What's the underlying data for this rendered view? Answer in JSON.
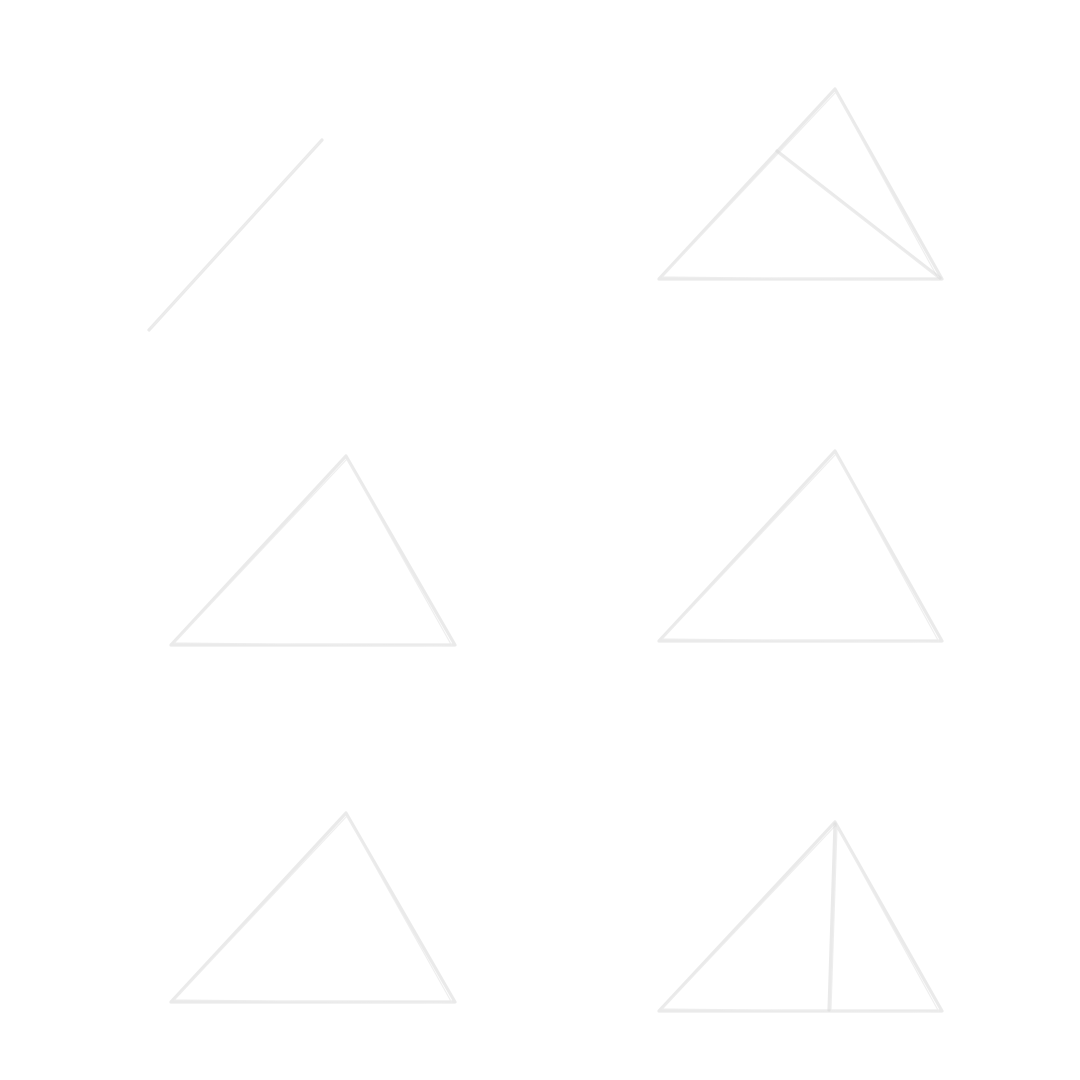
{
  "page": {
    "background": "#ffffff",
    "stroke_color": "#d9d9d9",
    "stroke_color_light": "#ececec"
  },
  "panels": [
    {
      "id": "panel-1",
      "figure": "single-segment"
    },
    {
      "id": "panel-2",
      "figure": "triangle-with-cevian-from-right-vertex"
    },
    {
      "id": "panel-3",
      "figure": "triangle"
    },
    {
      "id": "panel-4",
      "figure": "triangle"
    },
    {
      "id": "panel-5",
      "figure": "triangle"
    },
    {
      "id": "panel-6",
      "figure": "triangle-with-segment-from-apex-to-base"
    }
  ]
}
